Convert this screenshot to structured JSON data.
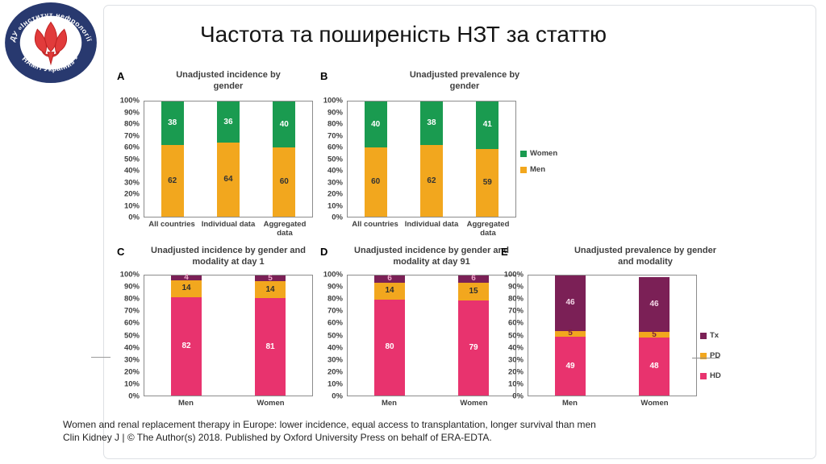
{
  "slide": {
    "title": "Частота та поширеність НЗТ за статтю",
    "footer_line1": "Women and renal replacement therapy in Europe: lower incidence, equal access to transplantation, longer survival than men",
    "footer_line2": "Clin Kidney J | © The Author(s) 2018. Published by Oxford University Press on behalf of ERA-EDTA."
  },
  "logo": {
    "arc_top": "ДУ «Інститут нефрології",
    "arc_bottom": "НАМН України» *"
  },
  "colors": {
    "women_green": "#1A9B50",
    "men_orange": "#F2A71E",
    "hd_pink": "#E8336E",
    "pd_orange": "#F2A71E",
    "tx_purple": "#7B2056",
    "axis_gray": "#3F3F3F"
  },
  "chart_data": [
    {
      "panel": "A",
      "type": "bar",
      "stacked": true,
      "title": "Unadjusted incidence by gender",
      "categories": [
        "All countries",
        "Individual data",
        "Aggregated data"
      ],
      "series": [
        {
          "name": "Men",
          "color": "#F2A71E",
          "label_color": "#333333",
          "values": [
            62,
            64,
            60
          ]
        },
        {
          "name": "Women",
          "color": "#1A9B50",
          "label_color": "#FFFFFF",
          "values": [
            38,
            36,
            40
          ]
        }
      ],
      "ylim": [
        0,
        100
      ],
      "ytick_step": 10,
      "ytick_format": "percent",
      "legend": null
    },
    {
      "panel": "B",
      "type": "bar",
      "stacked": true,
      "title": "Unadjusted prevalence by gender",
      "categories": [
        "All countries",
        "Individual data",
        "Aggregated data"
      ],
      "series": [
        {
          "name": "Men",
          "color": "#F2A71E",
          "label_color": "#333333",
          "values": [
            60,
            62,
            59
          ]
        },
        {
          "name": "Women",
          "color": "#1A9B50",
          "label_color": "#FFFFFF",
          "values": [
            40,
            38,
            41
          ]
        }
      ],
      "ylim": [
        0,
        100
      ],
      "ytick_step": 10,
      "ytick_format": "percent",
      "legend": [
        "Women",
        "Men"
      ]
    },
    {
      "panel": "C",
      "type": "bar",
      "stacked": true,
      "title": "Unadjusted incidence by gender and modality at day 1",
      "categories": [
        "Men",
        "Women"
      ],
      "series": [
        {
          "name": "HD",
          "color": "#E8336E",
          "label_color": "#FFFFFF",
          "values": [
            82,
            81
          ]
        },
        {
          "name": "PD",
          "color": "#F2A71E",
          "label_color": "#2E2E2E",
          "values": [
            14,
            14
          ]
        },
        {
          "name": "Tx",
          "color": "#7B2056",
          "label_color": "#EFA9CB",
          "values": [
            4,
            5
          ]
        }
      ],
      "ylim": [
        0,
        100
      ],
      "ytick_step": 10,
      "ytick_format": "percent",
      "legend": null
    },
    {
      "panel": "D",
      "type": "bar",
      "stacked": true,
      "title": "Unadjusted incidence by gender and modality at day 91",
      "categories": [
        "Men",
        "Women"
      ],
      "series": [
        {
          "name": "HD",
          "color": "#E8336E",
          "label_color": "#FFFFFF",
          "values": [
            80,
            79
          ]
        },
        {
          "name": "PD",
          "color": "#F2A71E",
          "label_color": "#2E2E2E",
          "values": [
            14,
            15
          ]
        },
        {
          "name": "Tx",
          "color": "#7B2056",
          "label_color": "#EFA9CB",
          "values": [
            6,
            6
          ]
        }
      ],
      "ylim": [
        0,
        100
      ],
      "ytick_step": 10,
      "ytick_format": "percent",
      "legend": null
    },
    {
      "panel": "E",
      "type": "bar",
      "stacked": true,
      "title": "Unadjusted prevalence by gender and modality",
      "categories": [
        "Men",
        "Women"
      ],
      "series": [
        {
          "name": "HD",
          "color": "#E8336E",
          "label_color": "#FFFFFF",
          "values": [
            49,
            48
          ]
        },
        {
          "name": "PD",
          "color": "#F2A71E",
          "label_color": "#7B2040",
          "values": [
            5,
            5
          ]
        },
        {
          "name": "Tx",
          "color": "#7B2056",
          "label_color": "#F3D7E7",
          "values": [
            46,
            46
          ]
        }
      ],
      "ylim": [
        0,
        100
      ],
      "ytick_step": 10,
      "ytick_format": "percent",
      "legend": [
        "Tx",
        "PD",
        "HD"
      ]
    }
  ]
}
